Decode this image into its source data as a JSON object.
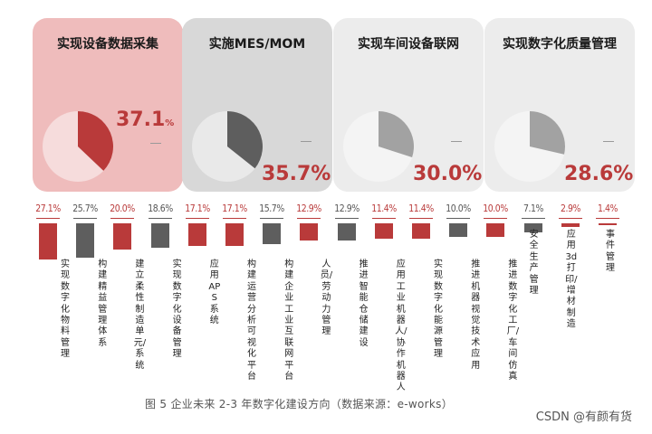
{
  "chart_data": [
    {
      "type": "pie",
      "panels": [
        {
          "title": "实现设备数据采集",
          "value": 37.1,
          "label": "37.1",
          "unit": "%",
          "highlight": "#b93a3a",
          "rest": "#f6dcdc",
          "card_bg": "#efbcbc"
        },
        {
          "title": "实施MES/MOM",
          "value": 35.7,
          "label": "35.7%",
          "unit": "",
          "highlight": "#5e5e5e",
          "rest": "#e9e9e9",
          "card_bg": "#d8d8d8"
        },
        {
          "title": "实现车间设备联网",
          "value": 30.0,
          "label": "30.0%",
          "unit": "",
          "highlight": "#a2a2a2",
          "rest": "#f4f4f4",
          "card_bg": "#ececec"
        },
        {
          "title": "实现数字化质量管理",
          "value": 28.6,
          "label": "28.6%",
          "unit": "",
          "highlight": "#a2a2a2",
          "rest": "#f4f4f4",
          "card_bg": "#ececec"
        }
      ]
    },
    {
      "type": "bar",
      "categories": [
        "实现数字化物料管理",
        "构建精益管理体系",
        "建立柔性制造单元/系统",
        "实现数字化设备管理",
        "应用APS系统",
        "构建运营分析可视化平台",
        "构建企业工业互联网平台",
        "人员/劳动力管理",
        "推进智能仓储建设",
        "应用工业机器人/协作机器人",
        "实现数字化能源管理",
        "推进机器视觉技术应用",
        "推进数字化工厂/车间仿真",
        "安全生产管理",
        "应用3d打印/增材制造",
        "事件管理"
      ],
      "values": [
        27.1,
        25.7,
        20.0,
        18.6,
        17.1,
        17.1,
        15.7,
        12.9,
        12.9,
        11.4,
        11.4,
        10.0,
        10.0,
        7.1,
        2.9,
        1.4
      ],
      "labels": [
        "27.1%",
        "25.7%",
        "20.0%",
        "18.6%",
        "17.1%",
        "17.1%",
        "15.7%",
        "12.9%",
        "12.9%",
        "11.4%",
        "11.4%",
        "10.0%",
        "10.0%",
        "7.1%",
        "2.9%",
        "1.4%"
      ],
      "colors": [
        "#b93a3a",
        "#5e5e5e",
        "#b93a3a",
        "#5e5e5e",
        "#b93a3a",
        "#b93a3a",
        "#5e5e5e",
        "#b93a3a",
        "#5e5e5e",
        "#b93a3a",
        "#b93a3a",
        "#5e5e5e",
        "#b93a3a",
        "#5e5e5e",
        "#b93a3a",
        "#b93a3a"
      ],
      "ylim": [
        0,
        30
      ]
    }
  ],
  "caption": "图 5 企业未来 2-3 年数字化建设方向（数据来源：e-works）",
  "watermark": "CSDN @有颜有货"
}
